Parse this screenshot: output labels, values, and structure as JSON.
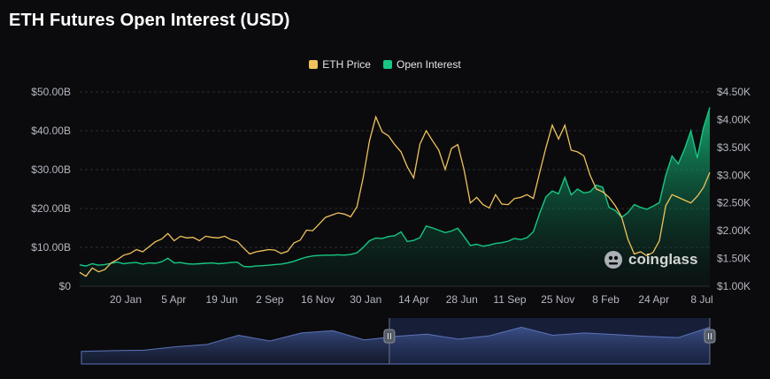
{
  "title": "ETH Futures Open Interest (USD)",
  "brand": "coinglass",
  "colors": {
    "background": "#0b0b0e",
    "eth_price": "#f1c25b",
    "open_interest": "#17c783",
    "grid": "#2b2d33",
    "navigator_fill": "#3a4a78"
  },
  "navigator": {
    "handle_left_icon": "pause-handle-icon",
    "handle_right_icon": "pause-handle-icon",
    "selected_start_fraction": 0.49,
    "selected_end_fraction": 1.0
  },
  "chart_data": {
    "type": "line",
    "title": "ETH Futures Open Interest (USD)",
    "legend_placement": "top-center",
    "grid": true,
    "x_tick_labels": [
      "20 Jan",
      "5 Apr",
      "19 Jun",
      "2 Sep",
      "16 Nov",
      "30 Jan",
      "14 Apr",
      "28 Jun",
      "11 Sep",
      "25 Nov",
      "8 Feb",
      "24 Apr",
      "8 Jul"
    ],
    "left_axis": {
      "tick_labels": [
        "$0",
        "$10.00B",
        "$20.00B",
        "$30.00B",
        "$40.00B",
        "$50.00B"
      ],
      "ylim": [
        0,
        50
      ]
    },
    "right_axis": {
      "tick_labels": [
        "$1.00K",
        "$1.50K",
        "$2.00K",
        "$2.50K",
        "$3.00K",
        "$3.50K",
        "$4.00K",
        "$4.50K"
      ],
      "ylim": [
        1000,
        4500
      ]
    },
    "x_range": [
      0,
      100
    ],
    "series": [
      {
        "name": "ETH Price",
        "axis": "right",
        "type": "line",
        "x": [
          0,
          1,
          2,
          3,
          4,
          5,
          6,
          7,
          8,
          9,
          10,
          11,
          12,
          13,
          14,
          15,
          16,
          17,
          18,
          19,
          20,
          21,
          22,
          23,
          24,
          25,
          26,
          27,
          28,
          29,
          30,
          31,
          32,
          33,
          34,
          35,
          36,
          37,
          38,
          39,
          40,
          41,
          42,
          43,
          44,
          45,
          46,
          47,
          48,
          49,
          50,
          51,
          52,
          53,
          54,
          55,
          56,
          57,
          58,
          59,
          60,
          61,
          62,
          63,
          64,
          65,
          66,
          67,
          68,
          69,
          70,
          71,
          72,
          73,
          74,
          75,
          76,
          77,
          78,
          79,
          80,
          81,
          82,
          83,
          84,
          85,
          86,
          87,
          88,
          89,
          90,
          91,
          92,
          93,
          94,
          95,
          96,
          97,
          98,
          99,
          100
        ],
        "values": [
          1250,
          1180,
          1330,
          1260,
          1300,
          1420,
          1480,
          1560,
          1590,
          1660,
          1620,
          1710,
          1800,
          1850,
          1950,
          1820,
          1900,
          1870,
          1880,
          1820,
          1900,
          1880,
          1870,
          1900,
          1840,
          1810,
          1690,
          1580,
          1620,
          1640,
          1660,
          1650,
          1590,
          1630,
          1780,
          1830,
          2010,
          2000,
          2120,
          2240,
          2280,
          2320,
          2300,
          2250,
          2430,
          2960,
          3620,
          4050,
          3780,
          3710,
          3550,
          3420,
          3150,
          2950,
          3560,
          3800,
          3620,
          3450,
          3100,
          3480,
          3550,
          3100,
          2500,
          2600,
          2470,
          2410,
          2650,
          2480,
          2470,
          2580,
          2600,
          2650,
          2580,
          3050,
          3500,
          3900,
          3650,
          3900,
          3450,
          3420,
          3350,
          3000,
          2750,
          2700,
          2600,
          2450,
          2250,
          1850,
          1580,
          1620,
          1550,
          1610,
          1820,
          2450,
          2650,
          2600,
          2550,
          2500,
          2620,
          2780,
          3050
        ]
      },
      {
        "name": "Open Interest",
        "axis": "left",
        "type": "area",
        "x": [
          0,
          1,
          2,
          3,
          4,
          5,
          6,
          7,
          8,
          9,
          10,
          11,
          12,
          13,
          14,
          15,
          16,
          17,
          18,
          19,
          20,
          21,
          22,
          23,
          24,
          25,
          26,
          27,
          28,
          29,
          30,
          31,
          32,
          33,
          34,
          35,
          36,
          37,
          38,
          39,
          40,
          41,
          42,
          43,
          44,
          45,
          46,
          47,
          48,
          49,
          50,
          51,
          52,
          53,
          54,
          55,
          56,
          57,
          58,
          59,
          60,
          61,
          62,
          63,
          64,
          65,
          66,
          67,
          68,
          69,
          70,
          71,
          72,
          73,
          74,
          75,
          76,
          77,
          78,
          79,
          80,
          81,
          82,
          83,
          84,
          85,
          86,
          87,
          88,
          89,
          90,
          91,
          92,
          93,
          94,
          95,
          96,
          97,
          98,
          99,
          100
        ],
        "values": [
          5.5,
          5.2,
          5.8,
          5.4,
          5.6,
          5.9,
          6.2,
          5.8,
          6.0,
          6.1,
          5.7,
          6.0,
          5.9,
          6.3,
          7.2,
          6.0,
          6.1,
          5.8,
          5.7,
          5.8,
          5.9,
          6.0,
          5.8,
          5.9,
          6.1,
          6.2,
          5.1,
          5.0,
          5.2,
          5.3,
          5.4,
          5.6,
          5.7,
          6.0,
          6.4,
          7.0,
          7.5,
          7.8,
          7.9,
          8.0,
          8.0,
          8.1,
          8.0,
          8.2,
          8.6,
          10.0,
          11.7,
          12.4,
          12.3,
          12.8,
          13.0,
          14.0,
          11.5,
          11.8,
          12.5,
          15.5,
          15.0,
          14.4,
          13.8,
          14.2,
          14.9,
          12.8,
          10.5,
          10.8,
          10.3,
          10.6,
          11.0,
          11.2,
          11.6,
          12.3,
          12.0,
          12.5,
          14.0,
          18.8,
          23.0,
          24.5,
          23.8,
          28.0,
          23.5,
          25.0,
          24.0,
          24.3,
          26.0,
          25.5,
          20.3,
          19.5,
          17.7,
          18.9,
          21.0,
          20.3,
          19.8,
          20.6,
          21.5,
          28.5,
          33.5,
          31.5,
          35.3,
          40.0,
          33.0,
          40.8,
          46.0
        ]
      }
    ],
    "navigator": {
      "x": [
        0,
        5,
        10,
        15,
        20,
        25,
        30,
        35,
        40,
        45,
        50,
        55,
        60,
        65,
        70,
        75,
        80,
        85,
        90,
        95,
        100
      ],
      "values": [
        5.5,
        5.8,
        6.0,
        7.5,
        8.5,
        12.5,
        10.0,
        13.5,
        14.5,
        10.5,
        12.0,
        13.0,
        10.8,
        12.3,
        16.0,
        12.5,
        13.5,
        12.8,
        12.0,
        11.5,
        16.0
      ]
    }
  }
}
